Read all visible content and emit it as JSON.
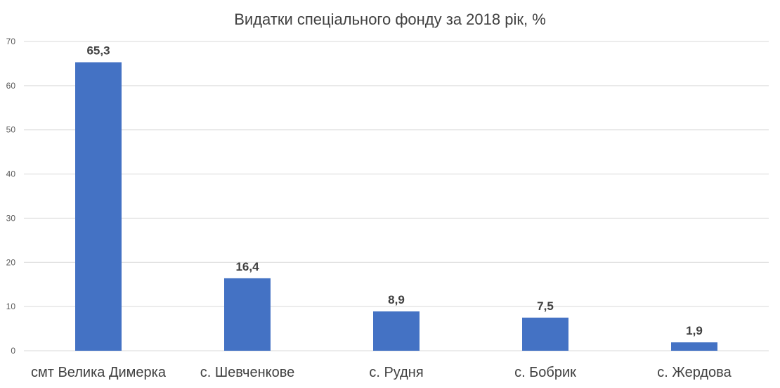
{
  "chart_data": {
    "type": "bar",
    "title": "Видатки спеціального фонду за 2018 рік, %",
    "xlabel": "",
    "ylabel": "",
    "categories": [
      "смт Велика Димерка",
      "с. Шевченкове",
      "с. Рудня",
      "с. Бобрик",
      "с. Жердова"
    ],
    "values": [
      65.3,
      16.4,
      8.9,
      7.5,
      1.9
    ],
    "data_labels": [
      "65,3",
      "16,4",
      "8,9",
      "7,5",
      "1,9"
    ],
    "ylim": [
      0,
      70
    ],
    "yticks": [
      0,
      10,
      20,
      30,
      40,
      50,
      60,
      70
    ],
    "grid": true,
    "legend": "none",
    "bar_color": "#4472c4"
  }
}
